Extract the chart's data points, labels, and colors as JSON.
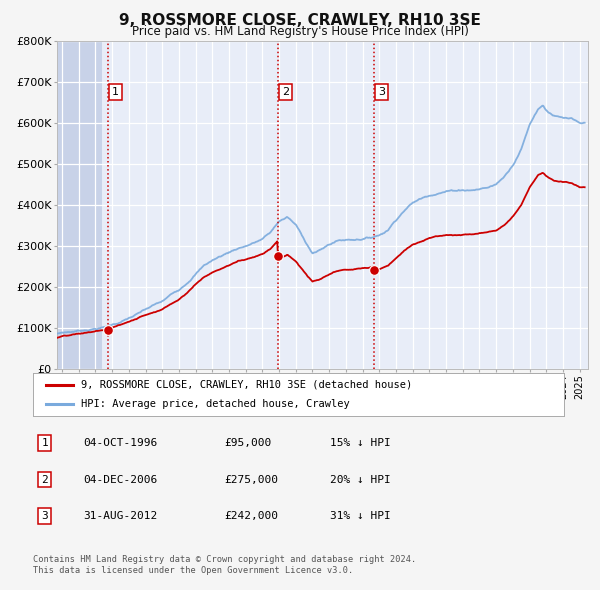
{
  "title": "9, ROSSMORE CLOSE, CRAWLEY, RH10 3SE",
  "subtitle": "Price paid vs. HM Land Registry's House Price Index (HPI)",
  "ylim": [
    0,
    800000
  ],
  "xlim_start": 1993.7,
  "xlim_end": 2025.5,
  "yticks": [
    0,
    100000,
    200000,
    300000,
    400000,
    500000,
    600000,
    700000,
    800000
  ],
  "ytick_labels": [
    "£0",
    "£100K",
    "£200K",
    "£300K",
    "£400K",
    "£500K",
    "£600K",
    "£700K",
    "£800K"
  ],
  "background_color": "#f5f5f5",
  "plot_bg_color": "#e8edf8",
  "grid_color": "#ffffff",
  "sale_color": "#cc0000",
  "hpi_color": "#7aaadd",
  "vline_color": "#cc0000",
  "sale_marker_size": 7,
  "transactions": [
    {
      "num": 1,
      "date_float": 1996.76,
      "price": 95000
    },
    {
      "num": 2,
      "date_float": 2006.92,
      "price": 275000
    },
    {
      "num": 3,
      "date_float": 2012.67,
      "price": 242000
    }
  ],
  "legend_label_sale": "9, ROSSMORE CLOSE, CRAWLEY, RH10 3SE (detached house)",
  "legend_label_hpi": "HPI: Average price, detached house, Crawley",
  "footnote1": "Contains HM Land Registry data © Crown copyright and database right 2024.",
  "footnote2": "This data is licensed under the Open Government Licence v3.0.",
  "table_rows": [
    {
      "num": 1,
      "date": "04-OCT-1996",
      "price": "£95,000",
      "pct": "15% ↓ HPI"
    },
    {
      "num": 2,
      "date": "04-DEC-2006",
      "price": "£275,000",
      "pct": "20% ↓ HPI"
    },
    {
      "num": 3,
      "date": "31-AUG-2012",
      "price": "£242,000",
      "pct": "31% ↓ HPI"
    }
  ]
}
